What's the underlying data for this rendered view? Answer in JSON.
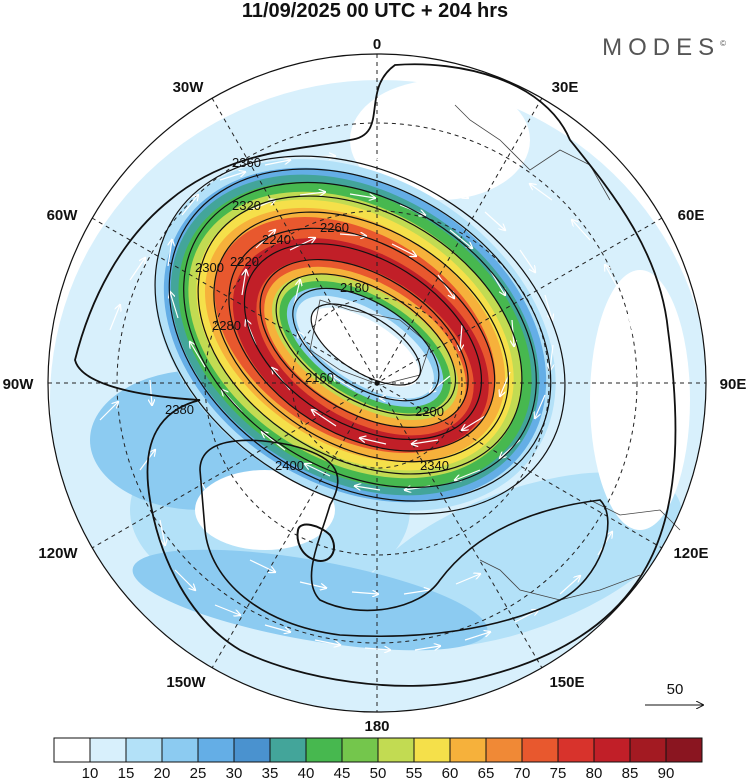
{
  "header": {
    "title": "11/09/2025  00 UTC  + 204 hrs",
    "brand": "MODES",
    "copyright": "©"
  },
  "map": {
    "projection": "south polar stereographic",
    "longitude_labels": [
      "0",
      "30E",
      "60E",
      "90E",
      "120E",
      "150E",
      "180",
      "150W",
      "120W",
      "90W",
      "60W",
      "30W"
    ],
    "contour_labels": [
      "2160",
      "2180",
      "2200",
      "2220",
      "2240",
      "2260",
      "2280",
      "2300",
      "2320",
      "2340",
      "2360",
      "2380",
      "2400"
    ],
    "vector_reference": {
      "value": "50"
    }
  },
  "colorbar": {
    "ticks": [
      "10",
      "15",
      "20",
      "25",
      "30",
      "35",
      "40",
      "45",
      "50",
      "55",
      "60",
      "65",
      "70",
      "75",
      "80",
      "85",
      "90"
    ],
    "colors": [
      "#ffffff",
      "#d8f0fc",
      "#b3e1f8",
      "#8ccbf1",
      "#64aee6",
      "#4a92cf",
      "#43a59a",
      "#47b84f",
      "#74c64c",
      "#c2db52",
      "#f5e04a",
      "#f6b13b",
      "#f08936",
      "#e8582e",
      "#d8332c",
      "#c11f28",
      "#a31a22",
      "#8a1520"
    ]
  }
}
